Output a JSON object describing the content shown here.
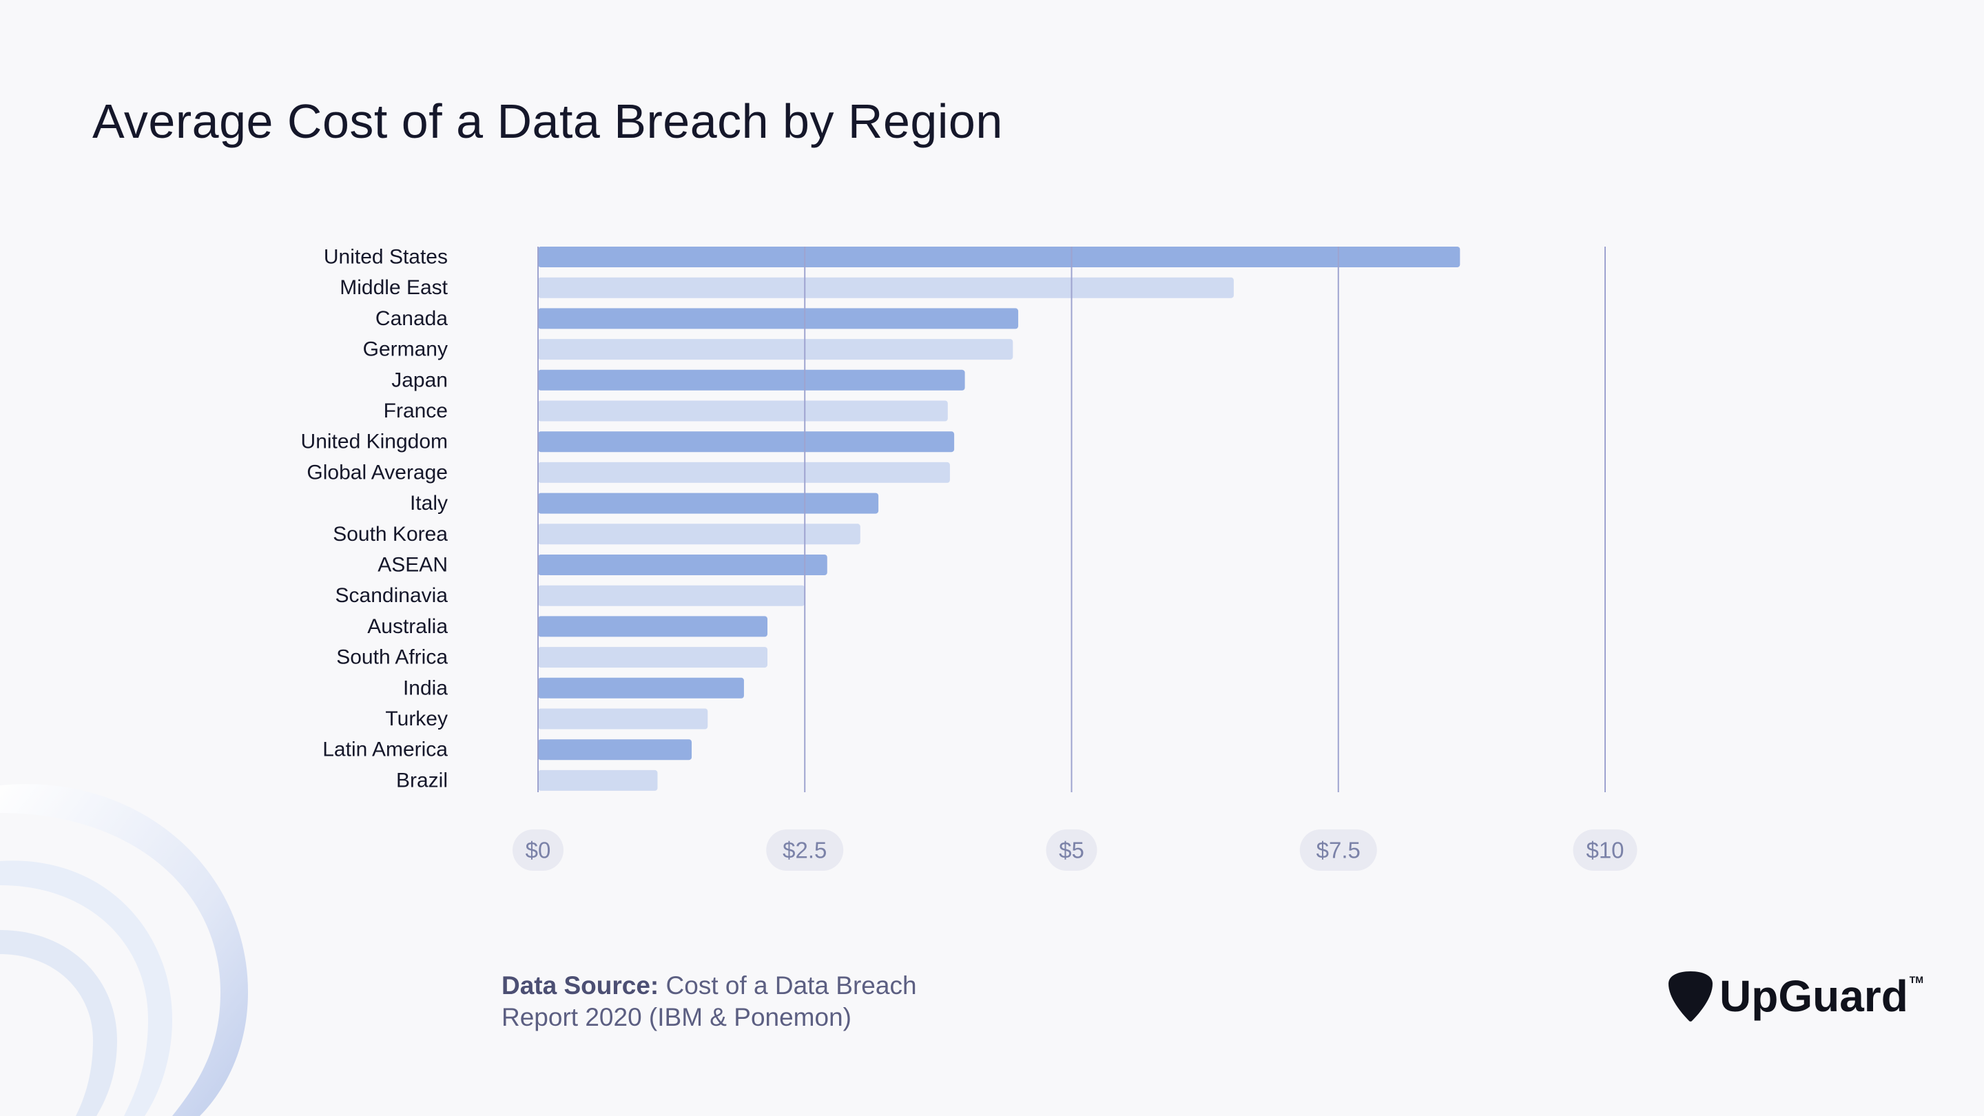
{
  "header": {
    "title": "Average Cost of a Data Breach by Region"
  },
  "colors": {
    "bar_dark": "#93aee2",
    "bar_light": "#cfdaf1",
    "gridline": "#9ea3cf",
    "tick_pill": "#e9eaf2",
    "tick_text": "#7b82a8"
  },
  "chart_data": {
    "type": "bar",
    "orientation": "horizontal",
    "title": "Average Cost of a Data Breach by Region",
    "categories": [
      "United States",
      "Middle East",
      "Canada",
      "Germany",
      "Japan",
      "France",
      "United Kingdom",
      "Global Average",
      "Italy",
      "South Korea",
      "ASEAN",
      "Scandinavia",
      "Australia",
      "South Africa",
      "India",
      "Turkey",
      "Latin America",
      "Brazil"
    ],
    "values": [
      8.64,
      6.52,
      4.5,
      4.45,
      4.0,
      3.84,
      3.9,
      3.86,
      3.19,
      3.02,
      2.71,
      2.5,
      2.15,
      2.15,
      1.93,
      1.59,
      1.44,
      1.12
    ],
    "xlim": [
      0,
      10
    ],
    "xticks": [
      0,
      2.5,
      5,
      7.5,
      10
    ],
    "xtick_labels": [
      "$0",
      "$2.5",
      "$5",
      "$7.5",
      "$10"
    ],
    "grid": "vertical",
    "bar_colors": "alternating dark/light",
    "legend": "none"
  },
  "source": {
    "label": "Data Source:",
    "text_line1": "Cost of a Data Breach",
    "text_line2": "Report 2020 (IBM & Ponemon)"
  },
  "brand": {
    "name": "UpGuard",
    "tm": "TM",
    "icon": "guitar-pick-shield-icon"
  }
}
